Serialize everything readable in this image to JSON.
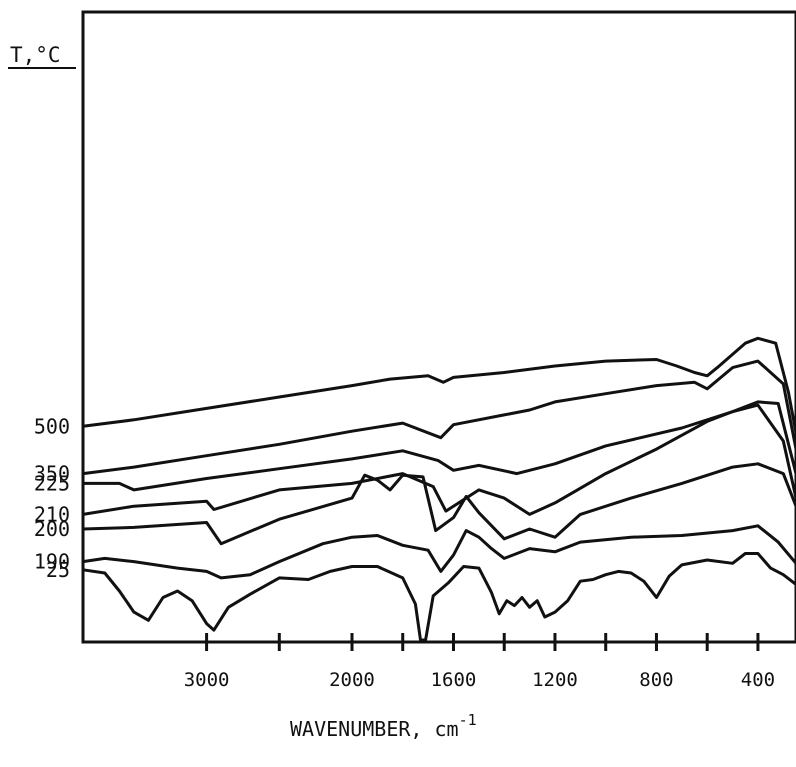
{
  "chart_data": {
    "type": "line",
    "title": "",
    "xlabel": "WAVENUMBER, cm",
    "xlabel_sup": "-1",
    "ylabel": "T,°C",
    "x_ticks": [
      3000,
      2000,
      1600,
      1200,
      800,
      400
    ],
    "x_tick_labels": [
      "3000",
      "2000",
      "1600",
      "1200",
      "800",
      "400"
    ],
    "x_segments": [
      {
        "from": 3850,
        "to": 2000
      },
      {
        "from": 2000,
        "to": 250
      }
    ],
    "grid": false,
    "series": [
      {
        "name": "500",
        "values": [
          [
            3850,
            0.9
          ],
          [
            3500,
            1.3
          ],
          [
            3000,
            2.0
          ],
          [
            2500,
            2.7
          ],
          [
            2000,
            3.4
          ],
          [
            1850,
            3.8
          ],
          [
            1700,
            4.0
          ],
          [
            1640,
            3.6
          ],
          [
            1600,
            3.9
          ],
          [
            1400,
            4.2
          ],
          [
            1300,
            4.4
          ],
          [
            1200,
            4.6
          ],
          [
            1000,
            4.9
          ],
          [
            800,
            5.0
          ],
          [
            720,
            4.6
          ],
          [
            650,
            4.2
          ],
          [
            600,
            4.0
          ],
          [
            560,
            4.5
          ],
          [
            450,
            6.0
          ],
          [
            400,
            6.3
          ],
          [
            330,
            6.0
          ],
          [
            280,
            3.0
          ],
          [
            250,
            0.5
          ]
        ]
      },
      {
        "name": "350",
        "values": [
          [
            3850,
            -2.0
          ],
          [
            3500,
            -1.6
          ],
          [
            3000,
            -0.9
          ],
          [
            2500,
            -0.2
          ],
          [
            2000,
            0.6
          ],
          [
            1800,
            1.1
          ],
          [
            1650,
            0.2
          ],
          [
            1600,
            1.0
          ],
          [
            1400,
            1.6
          ],
          [
            1300,
            1.9
          ],
          [
            1200,
            2.4
          ],
          [
            1000,
            2.9
          ],
          [
            800,
            3.4
          ],
          [
            650,
            3.6
          ],
          [
            600,
            3.2
          ],
          [
            500,
            4.5
          ],
          [
            400,
            4.9
          ],
          [
            300,
            3.5
          ],
          [
            250,
            -0.5
          ]
        ]
      },
      {
        "name": "225",
        "values": [
          [
            3850,
            -2.6
          ],
          [
            3600,
            -2.6
          ],
          [
            3500,
            -3.0
          ],
          [
            3000,
            -2.3
          ],
          [
            2500,
            -1.7
          ],
          [
            2000,
            -1.1
          ],
          [
            1800,
            -0.6
          ],
          [
            1660,
            -1.2
          ],
          [
            1600,
            -1.8
          ],
          [
            1500,
            -1.5
          ],
          [
            1350,
            -2.0
          ],
          [
            1200,
            -1.4
          ],
          [
            1000,
            -0.3
          ],
          [
            700,
            0.8
          ],
          [
            500,
            1.8
          ],
          [
            400,
            2.2
          ],
          [
            300,
            0.0
          ],
          [
            250,
            -3.5
          ]
        ]
      },
      {
        "name": "210",
        "values": [
          [
            3850,
            -4.5
          ],
          [
            3500,
            -4.0
          ],
          [
            3000,
            -3.7
          ],
          [
            2950,
            -4.2
          ],
          [
            2500,
            -3.0
          ],
          [
            2000,
            -2.6
          ],
          [
            1800,
            -2.0
          ],
          [
            1680,
            -2.8
          ],
          [
            1630,
            -4.3
          ],
          [
            1500,
            -3.0
          ],
          [
            1400,
            -3.5
          ],
          [
            1300,
            -4.5
          ],
          [
            1200,
            -3.8
          ],
          [
            1000,
            -2.0
          ],
          [
            800,
            -0.5
          ],
          [
            600,
            1.2
          ],
          [
            400,
            2.4
          ],
          [
            320,
            2.3
          ],
          [
            250,
            -2.0
          ]
        ]
      },
      {
        "name": "200",
        "values": [
          [
            3850,
            -5.4
          ],
          [
            3500,
            -5.3
          ],
          [
            3000,
            -5.0
          ],
          [
            2900,
            -6.3
          ],
          [
            2500,
            -4.8
          ],
          [
            2000,
            -3.5
          ],
          [
            1950,
            -2.1
          ],
          [
            1900,
            -2.4
          ],
          [
            1850,
            -3.0
          ],
          [
            1800,
            -2.1
          ],
          [
            1720,
            -2.2
          ],
          [
            1670,
            -5.5
          ],
          [
            1600,
            -4.7
          ],
          [
            1550,
            -3.4
          ],
          [
            1500,
            -4.4
          ],
          [
            1400,
            -6.0
          ],
          [
            1300,
            -5.4
          ],
          [
            1200,
            -5.9
          ],
          [
            1100,
            -4.5
          ],
          [
            900,
            -3.5
          ],
          [
            700,
            -2.6
          ],
          [
            500,
            -1.6
          ],
          [
            400,
            -1.4
          ],
          [
            300,
            -2.0
          ],
          [
            250,
            -4.0
          ]
        ]
      },
      {
        "name": "190",
        "values": [
          [
            3850,
            -7.4
          ],
          [
            3700,
            -7.2
          ],
          [
            3500,
            -7.4
          ],
          [
            3200,
            -7.8
          ],
          [
            3000,
            -8.0
          ],
          [
            2900,
            -8.4
          ],
          [
            2700,
            -8.2
          ],
          [
            2500,
            -7.4
          ],
          [
            2200,
            -6.3
          ],
          [
            2000,
            -5.9
          ],
          [
            1900,
            -5.8
          ],
          [
            1800,
            -6.4
          ],
          [
            1700,
            -6.7
          ],
          [
            1650,
            -8.0
          ],
          [
            1600,
            -7.0
          ],
          [
            1550,
            -5.5
          ],
          [
            1500,
            -5.9
          ],
          [
            1450,
            -6.6
          ],
          [
            1400,
            -7.2
          ],
          [
            1300,
            -6.6
          ],
          [
            1200,
            -6.8
          ],
          [
            1100,
            -6.2
          ],
          [
            900,
            -5.9
          ],
          [
            700,
            -5.8
          ],
          [
            500,
            -5.5
          ],
          [
            400,
            -5.2
          ],
          [
            320,
            -6.2
          ],
          [
            250,
            -7.5
          ]
        ]
      },
      {
        "name": "25",
        "values": [
          [
            3850,
            -7.9
          ],
          [
            3700,
            -8.1
          ],
          [
            3600,
            -9.2
          ],
          [
            3500,
            -10.5
          ],
          [
            3400,
            -11.0
          ],
          [
            3300,
            -9.6
          ],
          [
            3200,
            -9.2
          ],
          [
            3100,
            -9.8
          ],
          [
            3000,
            -11.2
          ],
          [
            2950,
            -11.6
          ],
          [
            2850,
            -10.2
          ],
          [
            2700,
            -9.4
          ],
          [
            2500,
            -8.4
          ],
          [
            2300,
            -8.5
          ],
          [
            2150,
            -8.0
          ],
          [
            2000,
            -7.7
          ],
          [
            1900,
            -7.7
          ],
          [
            1800,
            -8.4
          ],
          [
            1750,
            -10.0
          ],
          [
            1730,
            -12.4
          ],
          [
            1710,
            -12.2
          ],
          [
            1680,
            -9.5
          ],
          [
            1620,
            -8.7
          ],
          [
            1560,
            -7.7
          ],
          [
            1500,
            -7.8
          ],
          [
            1450,
            -9.3
          ],
          [
            1420,
            -10.6
          ],
          [
            1390,
            -9.8
          ],
          [
            1360,
            -10.1
          ],
          [
            1330,
            -9.6
          ],
          [
            1300,
            -10.2
          ],
          [
            1270,
            -9.8
          ],
          [
            1240,
            -10.8
          ],
          [
            1200,
            -10.5
          ],
          [
            1150,
            -9.8
          ],
          [
            1100,
            -8.6
          ],
          [
            1050,
            -8.5
          ],
          [
            1000,
            -8.2
          ],
          [
            950,
            -8.0
          ],
          [
            900,
            -8.1
          ],
          [
            850,
            -8.6
          ],
          [
            800,
            -9.6
          ],
          [
            750,
            -8.3
          ],
          [
            700,
            -7.6
          ],
          [
            600,
            -7.3
          ],
          [
            500,
            -7.5
          ],
          [
            450,
            -6.9
          ],
          [
            400,
            -6.9
          ],
          [
            350,
            -7.8
          ],
          [
            300,
            -8.2
          ],
          [
            250,
            -8.8
          ]
        ]
      }
    ]
  }
}
